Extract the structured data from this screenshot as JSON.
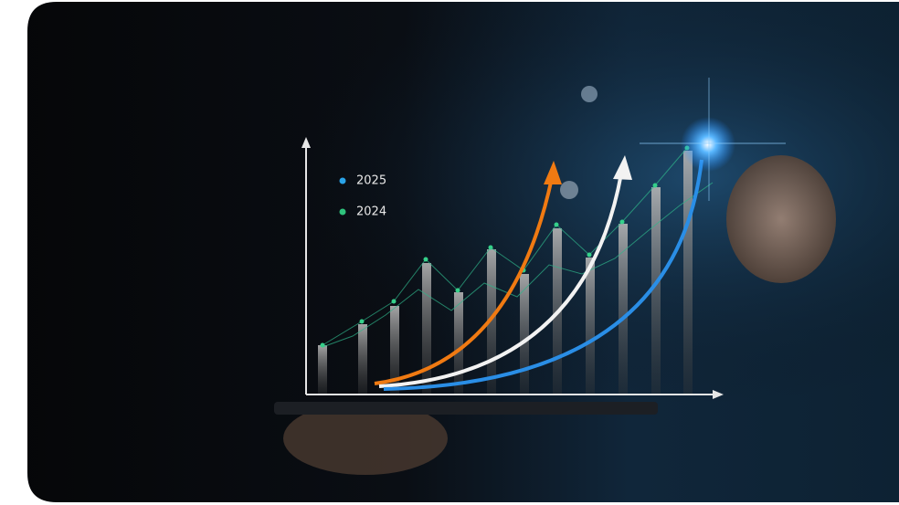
{
  "legend": [
    {
      "label": "2025"
    },
    {
      "label": "2024"
    }
  ]
}
